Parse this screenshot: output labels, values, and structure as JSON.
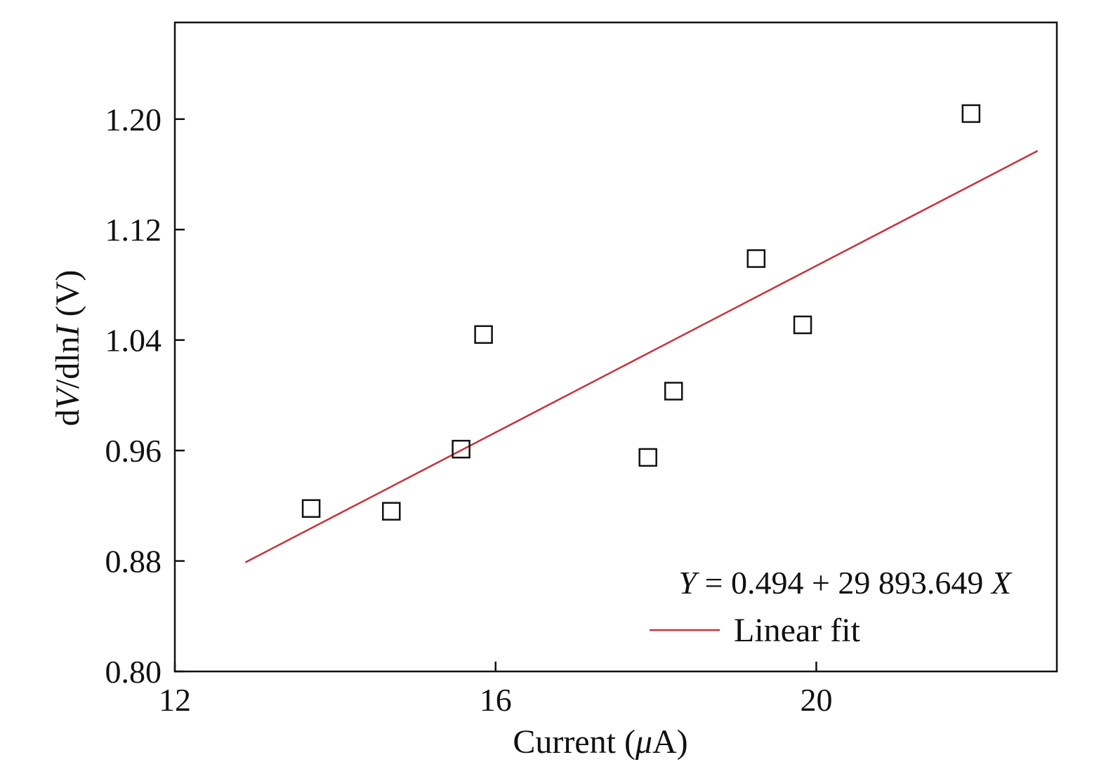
{
  "chart_data": {
    "type": "scatter",
    "title": "",
    "xlabel": {
      "pre": "Current (",
      "italic": "μ",
      "post": "A)"
    },
    "ylabel": {
      "d1": "d",
      "v": "V",
      "mid": "/dln",
      "i": "I",
      "post": " (V)"
    },
    "xlim": [
      12,
      23
    ],
    "ylim": [
      0.8,
      1.27
    ],
    "x_ticks": [
      12,
      16,
      20
    ],
    "x_tick_labels": [
      "12",
      "16",
      "20"
    ],
    "y_ticks": [
      0.8,
      0.88,
      0.96,
      1.04,
      1.12,
      1.2
    ],
    "y_tick_labels": [
      "0.80",
      "0.88",
      "0.96",
      "1.04",
      "1.12",
      "1.20"
    ],
    "grid": false,
    "series": [
      {
        "kind": "scatter",
        "marker": "open-square",
        "color": "#111111",
        "x": [
          13.7,
          14.7,
          15.57,
          15.85,
          17.9,
          18.22,
          19.25,
          19.83,
          21.93
        ],
        "y": [
          0.918,
          0.916,
          0.961,
          1.044,
          0.955,
          1.003,
          1.099,
          1.051,
          1.204
        ]
      },
      {
        "name": "Linear fit",
        "kind": "line",
        "color": "#c8323c",
        "x": [
          12.88,
          22.76
        ],
        "y": [
          0.879,
          1.177
        ]
      }
    ],
    "annotation": {
      "y_var": "Y",
      "equation": " = 0.494 + 29 893.649 ",
      "x_var": "X"
    },
    "legend": {
      "placement": "bottom-right",
      "entries": [
        "Linear fit"
      ]
    }
  }
}
